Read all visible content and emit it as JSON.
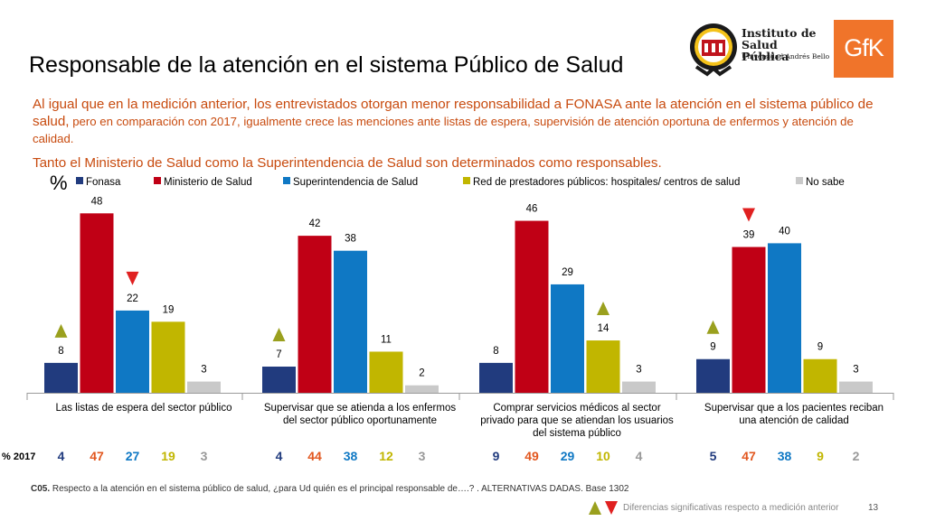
{
  "header": {
    "title": "Responsable de la atención en el sistema Público de Salud",
    "subtitle_big": "Al igual que en la medición anterior, los entrevistados otorgan menor responsabilidad a FONASA ante la atención en el sistema público de salud,",
    "subtitle_small": " pero en comparación con 2017, igualmente crece las menciones ante listas de espera, supervisión de atención oportuna de enfermos y atención de calidad.",
    "subtitle2": "Tanto el Ministerio de Salud como la Superintendencia de Salud son determinados como responsables."
  },
  "logos": {
    "isp_line1": "Instituto de",
    "isp_line2": "Salud Pública",
    "isp_line3": "Universidad Andrés Bello",
    "gfk": "GfK"
  },
  "chart_data": {
    "type": "bar",
    "unit_label": "%",
    "ylim": [
      0,
      50
    ],
    "series": [
      {
        "name": "Fonasa",
        "color": "#213b7e",
        "values": [
          8,
          7,
          8,
          9
        ]
      },
      {
        "name": "Ministerio de Salud",
        "color": "#c00015",
        "values": [
          48,
          42,
          46,
          39
        ]
      },
      {
        "name": "Superintendencia de Salud",
        "color": "#0f78c4",
        "values": [
          22,
          38,
          29,
          40
        ]
      },
      {
        "name": "Red de prestadores públicos: hospitales/ centros de salud",
        "color": "#c1b600",
        "values": [
          19,
          11,
          14,
          9
        ]
      },
      {
        "name": "No sabe",
        "color": "#c9c9c9",
        "values": [
          3,
          2,
          3,
          3
        ]
      }
    ],
    "categories": [
      [
        "Las listas de espera del sector público"
      ],
      [
        "Supervisar que se atienda a los enfermos",
        "del sector público oportunamente"
      ],
      [
        "Comprar servicios médicos al sector",
        "privado para que se atiendan los usuarios",
        "del sistema público"
      ],
      [
        "Supervisar que a los pacientes reciban",
        "una atención de calidad"
      ]
    ],
    "significance_markers": [
      {
        "category": 0,
        "series": 0,
        "direction": "up"
      },
      {
        "category": 0,
        "series": 2,
        "direction": "down"
      },
      {
        "category": 1,
        "series": 0,
        "direction": "up"
      },
      {
        "category": 2,
        "series": 3,
        "direction": "up"
      },
      {
        "category": 3,
        "series": 0,
        "direction": "up"
      },
      {
        "category": 3,
        "series": 1,
        "direction": "down"
      }
    ],
    "comparison_label": "% 2017",
    "comparison_values": [
      [
        4,
        47,
        27,
        19,
        3
      ],
      [
        4,
        44,
        38,
        12,
        3
      ],
      [
        9,
        49,
        29,
        10,
        4
      ],
      [
        5,
        47,
        38,
        9,
        2
      ]
    ],
    "comparison_colors": [
      "#213b7e",
      "#e2571f",
      "#0f78c4",
      "#c1b600",
      "#999999"
    ],
    "marker_colors": {
      "up": "#9aa01e",
      "down": "#e02020"
    }
  },
  "footer": {
    "question_code": "C05.",
    "question_text": " Respecto a la atención en el sistema público de salud, ¿para Ud quién es el principal responsable de….? . ALTERNATIVAS DADAS.  Base  1302",
    "sig_label": "Diferencias significativas respecto a medición anterior",
    "page_number": "13"
  }
}
